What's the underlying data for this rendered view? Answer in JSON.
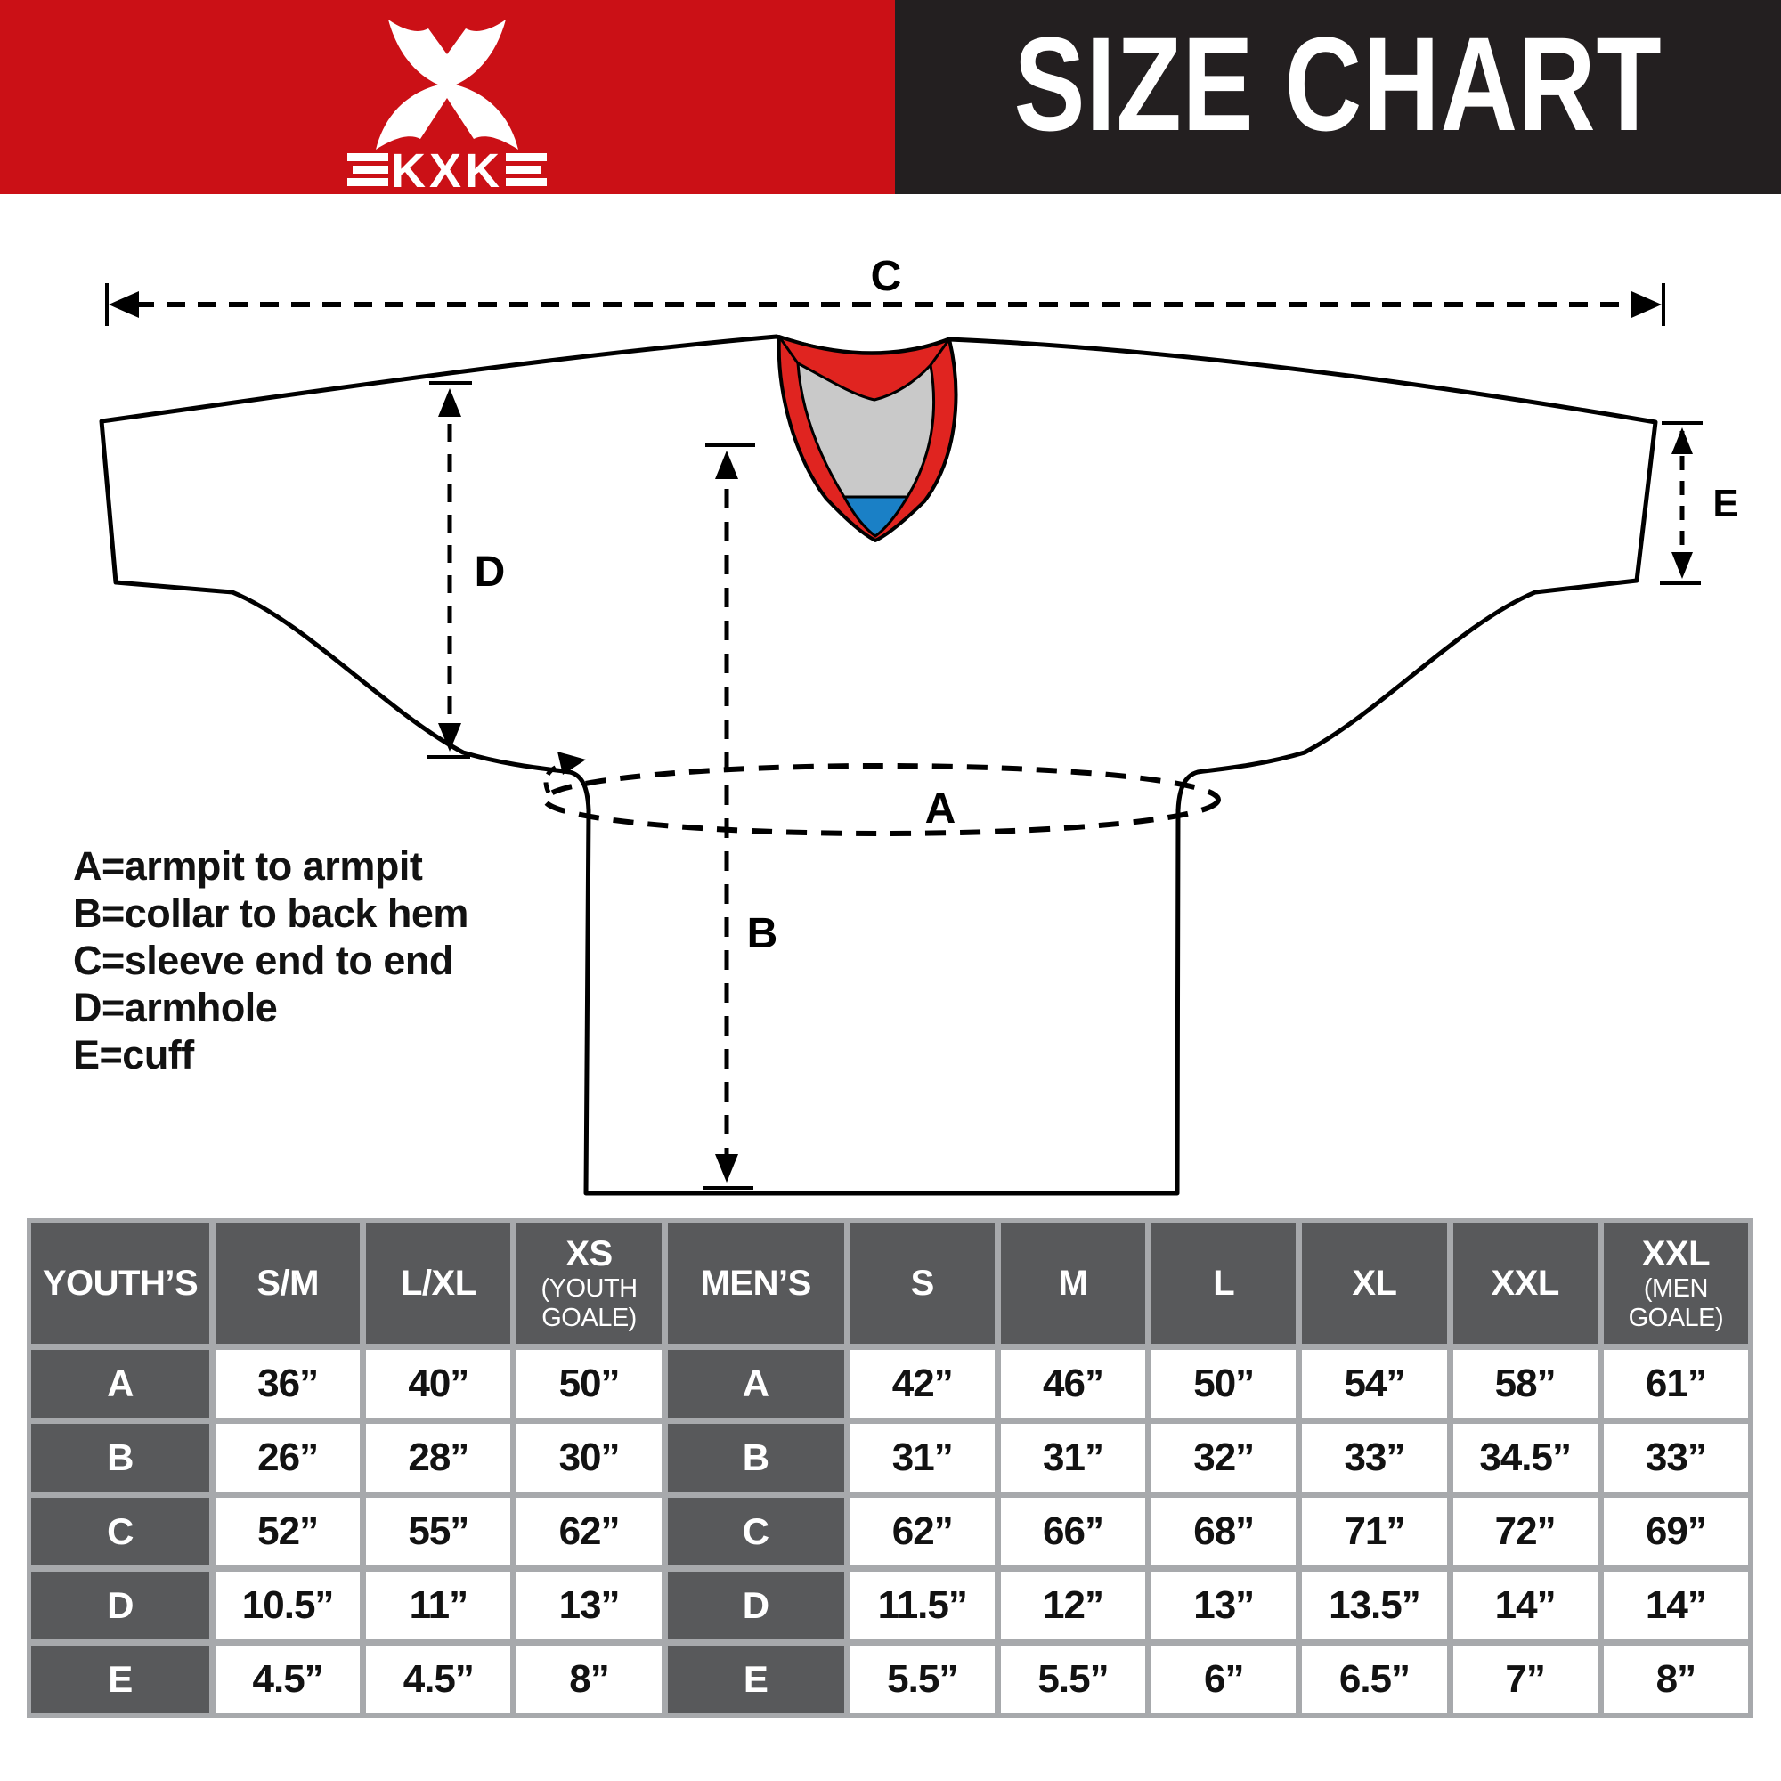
{
  "header": {
    "brand": "KXK",
    "title": "SIZE CHART",
    "colors": {
      "brand_red": "#cb1016",
      "header_black": "#231f20"
    }
  },
  "colors": {
    "brand_red": "#cb1016",
    "header_black": "#231f20",
    "collar_red": "#e02420",
    "collar_gray": "#c9c9c9",
    "collar_blue": "#1a80c6",
    "cell_dark": "#58595b",
    "grid_gray": "#a7a9ac"
  },
  "diagram": {
    "labels": {
      "a": "A",
      "b": "B",
      "c": "C",
      "d": "D",
      "e": "E"
    },
    "legend": [
      "A=armpit to armpit",
      "B=collar to back hem",
      "C=sleeve end to end",
      "D=armhole",
      "E=cuff"
    ]
  },
  "size_table": {
    "header_cells": [
      {
        "label": "YOUTH’S"
      },
      {
        "label": "S/M"
      },
      {
        "label": "L/XL"
      },
      {
        "label": "XS",
        "sub": [
          "(YOUTH",
          "GOALE)"
        ]
      },
      {
        "label": "MEN’S"
      },
      {
        "label": "S"
      },
      {
        "label": "M"
      },
      {
        "label": "L"
      },
      {
        "label": "XL"
      },
      {
        "label": "XXL"
      },
      {
        "label": "XXL",
        "sub": [
          "(MEN",
          "GOALE)"
        ]
      }
    ],
    "rows": [
      {
        "measure": "A",
        "youth": [
          "36”",
          "40”",
          "50”"
        ],
        "men": [
          "42”",
          "46”",
          "50”",
          "54”",
          "58”",
          "61”"
        ]
      },
      {
        "measure": "B",
        "youth": [
          "26”",
          "28”",
          "30”"
        ],
        "men": [
          "31”",
          "31”",
          "32”",
          "33”",
          "34.5”",
          "33”"
        ]
      },
      {
        "measure": "C",
        "youth": [
          "52”",
          "55”",
          "62”"
        ],
        "men": [
          "62”",
          "66”",
          "68”",
          "71”",
          "72”",
          "69”"
        ]
      },
      {
        "measure": "D",
        "youth": [
          "10.5”",
          "11”",
          "13”"
        ],
        "men": [
          "11.5”",
          "12”",
          "13”",
          "13.5”",
          "14”",
          "14”"
        ]
      },
      {
        "measure": "E",
        "youth": [
          "4.5”",
          "4.5”",
          "8”"
        ],
        "men": [
          "5.5”",
          "5.5”",
          "6”",
          "6.5”",
          "7”",
          "8”"
        ]
      }
    ]
  }
}
